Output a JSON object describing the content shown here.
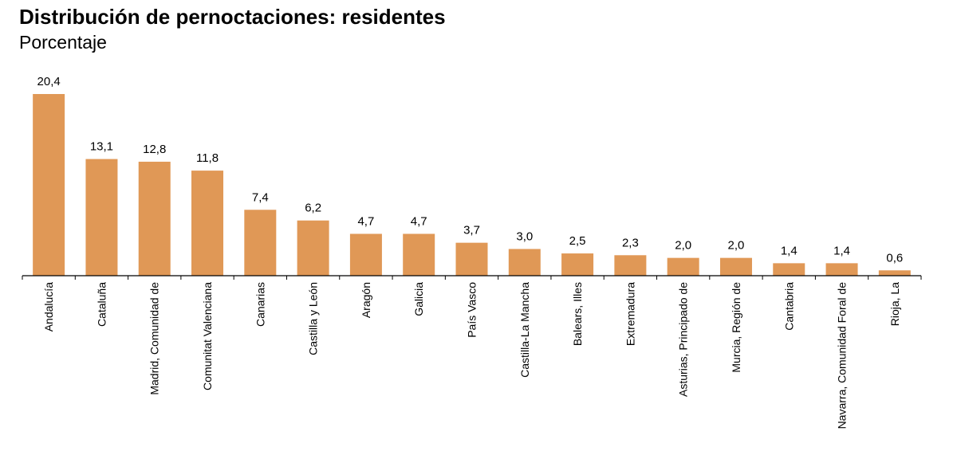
{
  "chart_data": {
    "type": "bar",
    "title": "Distribución de pernoctaciones: residentes",
    "subtitle": "Porcentaje",
    "xlabel": "",
    "ylabel": "",
    "categories": [
      "Andalucía",
      "Cataluña",
      "Madrid, Comunidad de",
      "Comunitat Valenciana",
      "Canarias",
      "Castilla y León",
      "Aragón",
      "Galicia",
      "País Vasco",
      "Castilla-La Mancha",
      "Balears, Illes",
      "Extremadura",
      "Asturias, Principado de",
      "Murcia, Región de",
      "Cantabria",
      "Navarra, Comunidad Foral de",
      "Rioja, La"
    ],
    "values": [
      20.4,
      13.1,
      12.8,
      11.8,
      7.4,
      6.2,
      4.7,
      4.7,
      3.7,
      3.0,
      2.5,
      2.3,
      2.0,
      2.0,
      1.4,
      1.4,
      0.6
    ],
    "value_labels": [
      "20,4",
      "13,1",
      "12,8",
      "11,8",
      "7,4",
      "6,2",
      "4,7",
      "4,7",
      "3,7",
      "3,0",
      "2,5",
      "2,3",
      "2,0",
      "2,0",
      "1,4",
      "1,4",
      "0,6"
    ],
    "ylim": [
      0,
      20.4
    ],
    "grid": false,
    "legend": "none",
    "bar_color": "#E09856",
    "axis_color": "#000000"
  }
}
